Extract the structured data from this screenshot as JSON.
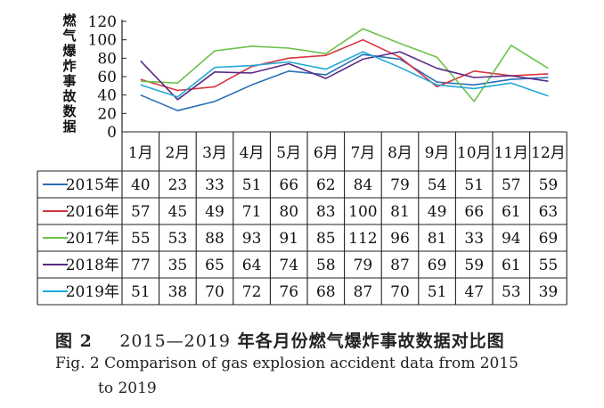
{
  "chart_data": {
    "type": "line",
    "ylabel": "燃气爆炸事故数据",
    "ylim": [
      0,
      120
    ],
    "yticks": [
      0,
      20,
      40,
      60,
      80,
      100,
      120
    ],
    "categories": [
      "1月",
      "2月",
      "3月",
      "4月",
      "5月",
      "6月",
      "7月",
      "8月",
      "9月",
      "10月",
      "11月",
      "12月"
    ],
    "series": [
      {
        "name": "2015年",
        "color": "#2a6fb5",
        "values": [
          40,
          23,
          33,
          51,
          66,
          62,
          84,
          79,
          54,
          51,
          57,
          59
        ]
      },
      {
        "name": "2016年",
        "color": "#d6333f",
        "values": [
          57,
          45,
          49,
          71,
          80,
          83,
          100,
          81,
          49,
          66,
          61,
          63
        ]
      },
      {
        "name": "2017年",
        "color": "#6cc24a",
        "values": [
          55,
          53,
          88,
          93,
          91,
          85,
          112,
          96,
          81,
          33,
          94,
          69
        ]
      },
      {
        "name": "2018年",
        "color": "#5b2a86",
        "values": [
          77,
          35,
          65,
          64,
          74,
          58,
          79,
          87,
          69,
          59,
          61,
          55
        ]
      },
      {
        "name": "2019年",
        "color": "#21a9d6",
        "values": [
          51,
          38,
          70,
          72,
          76,
          68,
          87,
          70,
          51,
          47,
          53,
          39
        ]
      }
    ],
    "legend": "table-left",
    "grid": false
  },
  "caption": {
    "zh_label": "图 2",
    "zh_num": "2015—2019",
    "zh_text": "年各月份燃气爆炸事故数据对比图",
    "en_line1": "Fig. 2   Comparison of gas explosion accident data from 2015",
    "en_line2": "to 2019"
  }
}
